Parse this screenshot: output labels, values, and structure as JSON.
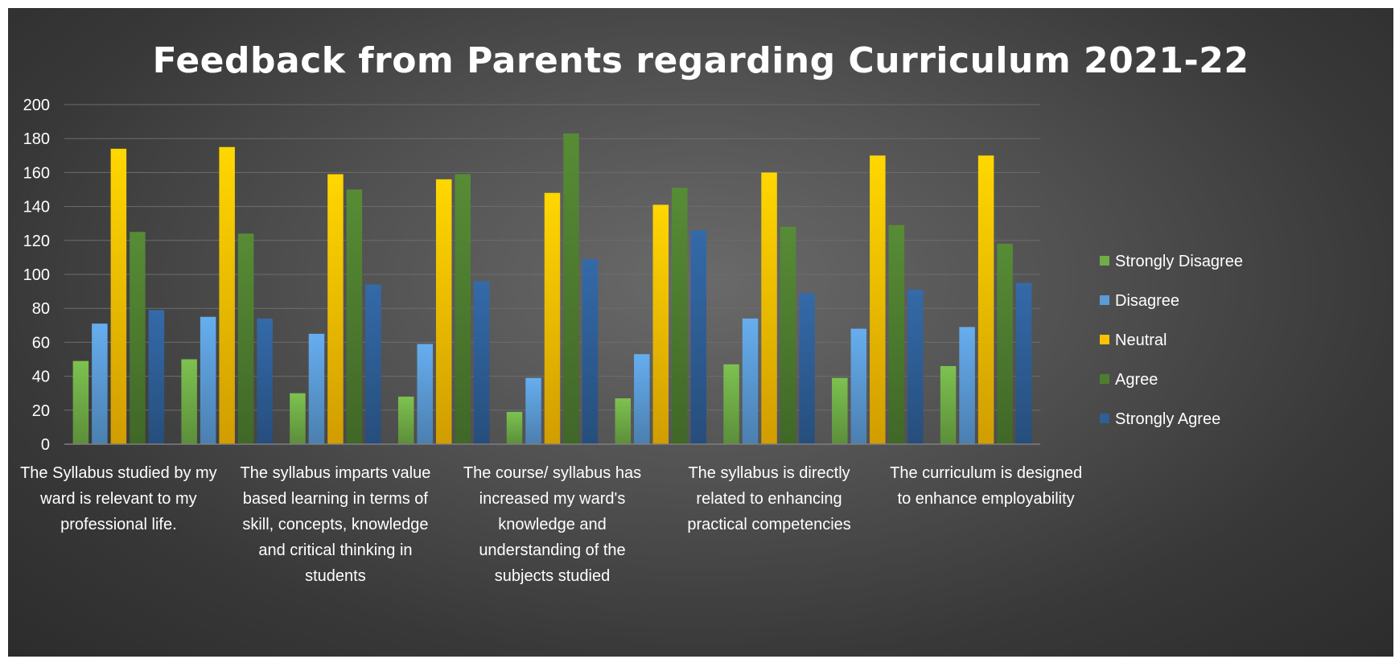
{
  "chart_data": {
    "type": "bar",
    "title": "Feedback from Parents regarding Curriculum 2021-22",
    "xlabel": "",
    "ylabel": "",
    "ylim": [
      0,
      200
    ],
    "yticks": [
      0,
      20,
      40,
      60,
      80,
      100,
      120,
      140,
      160,
      180,
      200
    ],
    "grid": true,
    "legend_position": "right",
    "categories": [
      "The Syllabus studied by my ward is relevant to my professional life.",
      "",
      "The syllabus imparts value based learning in terms of skill, concepts, knowledge and critical thinking in students",
      "",
      "The course/ syllabus has increased my ward's knowledge and understanding of the subjects studied",
      "",
      "The syllabus is directly related to enhancing practical competencies",
      "",
      "The curriculum is designed to enhance employability"
    ],
    "category_label_lines": [
      [
        "The Syllabus studied by my",
        "ward is relevant to my",
        "professional life."
      ],
      [],
      [
        "The syllabus imparts value",
        "based learning in terms of",
        "skill, concepts, knowledge",
        "and critical thinking in",
        "students"
      ],
      [],
      [
        "The course/ syllabus has",
        "increased my ward's",
        "knowledge and",
        "understanding of the",
        "subjects studied"
      ],
      [],
      [
        "The syllabus is directly",
        "related to enhancing",
        "practical competencies"
      ],
      [],
      [
        "The curriculum is designed",
        "to enhance employability"
      ]
    ],
    "series": [
      {
        "name": "Strongly Disagree",
        "color": "#70ad47",
        "values": [
          49,
          50,
          30,
          28,
          19,
          27,
          47,
          39,
          46
        ]
      },
      {
        "name": "Disagree",
        "color": "#5b9bd5",
        "values": [
          71,
          75,
          65,
          59,
          39,
          53,
          74,
          68,
          69
        ]
      },
      {
        "name": "Neutral",
        "color": "#ffc000",
        "values": [
          174,
          175,
          159,
          156,
          148,
          141,
          160,
          170,
          170
        ]
      },
      {
        "name": "Agree",
        "color": "#4e7d2f",
        "values": [
          125,
          124,
          150,
          159,
          183,
          151,
          128,
          129,
          118
        ]
      },
      {
        "name": "Strongly Agree",
        "color": "#2e5f97",
        "values": [
          79,
          74,
          94,
          96,
          109,
          126,
          89,
          91,
          95
        ]
      }
    ]
  }
}
